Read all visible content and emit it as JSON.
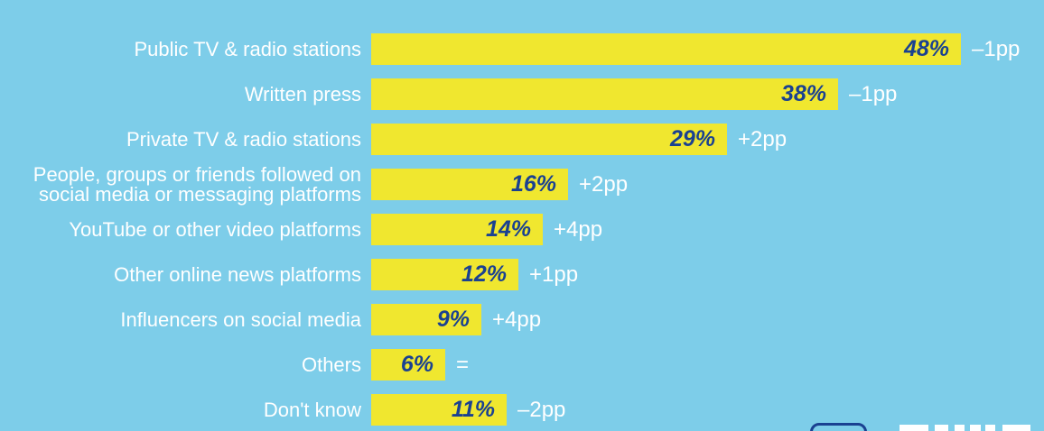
{
  "colors": {
    "background": "#7DCDE9",
    "bar": "#F0E72F",
    "value_text": "#1A4191",
    "label_text": "#FFFFFF"
  },
  "icons": {
    "bottom_right_outline": "partial-rounded-rect-logo",
    "bottom_right_blocks": "partial-letter-blocks-logo"
  },
  "chart_data": {
    "type": "bar",
    "orientation": "horizontal",
    "title": "",
    "categories": [
      "Public TV & radio stations",
      "Written press",
      "Private TV & radio stations",
      "People, groups or friends followed on social media or messaging platforms",
      "YouTube or other video platforms",
      "Other online news platforms",
      "Influencers on social media",
      "Others",
      "Don't know"
    ],
    "values": [
      48,
      38,
      29,
      16,
      14,
      12,
      9,
      6,
      11
    ],
    "value_labels": [
      "48%",
      "38%",
      "29%",
      "16%",
      "14%",
      "12%",
      "9%",
      "6%",
      "11%"
    ],
    "changes": [
      "–1pp",
      "–1pp",
      "+2pp",
      "+2pp",
      "+4pp",
      "+1pp",
      "+4pp",
      "=",
      "–2pp"
    ],
    "unit": "percent",
    "change_unit": "pp",
    "xlim": [
      0,
      50
    ],
    "grid": false,
    "legend": false,
    "value_label_position": "inside-end",
    "change_label_position": "outside-end"
  }
}
